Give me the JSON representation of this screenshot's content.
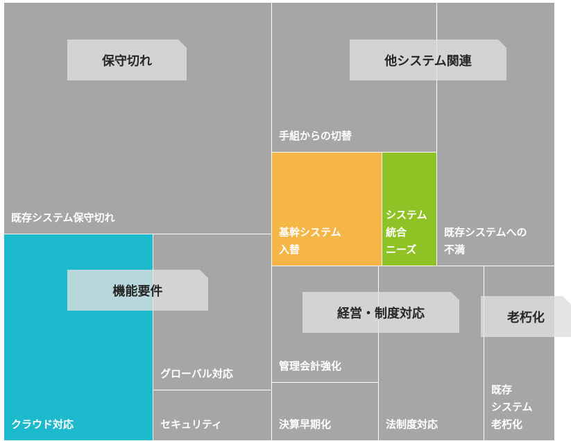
{
  "groups": [
    {
      "label": "保守切れ"
    },
    {
      "label": "他システム関連"
    },
    {
      "label": "機能要件"
    },
    {
      "label": "経営・制度対応"
    },
    {
      "label": "老朽化"
    }
  ],
  "cells": [
    {
      "lines": [
        "既存システム保守切れ"
      ]
    },
    {
      "lines": [
        "クラウド対応"
      ]
    },
    {
      "lines": [
        "グローバル対応"
      ]
    },
    {
      "lines": [
        "セキュリティ"
      ]
    },
    {
      "lines": [
        "手組からの切替"
      ]
    },
    {
      "lines": [
        "基幹システム",
        "入替"
      ]
    },
    {
      "lines": [
        "システム",
        "統合",
        "ニーズ"
      ]
    },
    {
      "lines": [
        "既存システムへの",
        "不満"
      ]
    },
    {
      "lines": [
        "管理会計強化"
      ]
    },
    {
      "lines": [
        "決算早期化"
      ]
    },
    {
      "lines": [
        "法制度対応"
      ]
    },
    {
      "lines": [
        "既存",
        "システム",
        "老朽化"
      ]
    }
  ]
}
